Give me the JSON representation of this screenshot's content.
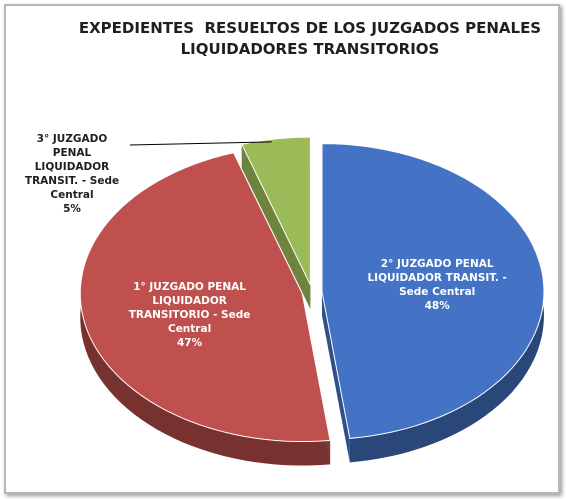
{
  "chart_data": {
    "type": "pie",
    "title": "EXPEDIENTES  RESUELTOS DE LOS JUZGADOS PENALES LIQUIDADORES TRANSITORIOS",
    "categories": [
      "2° JUZGADO PENAL LIQUIDADOR TRANSIT. - Sede Central",
      "1° JUZGADO PENAL LIQUIDADOR TRANSITORIO - Sede Central",
      "3° JUZGADO PENAL LIQUIDADOR TRANSIT. - Sede Central"
    ],
    "values": [
      48,
      47,
      5
    ],
    "value_labels": [
      "48%",
      "47%",
      "5%"
    ],
    "colors": [
      "#4472c4",
      "#c0504d",
      "#9bbb59"
    ]
  }
}
